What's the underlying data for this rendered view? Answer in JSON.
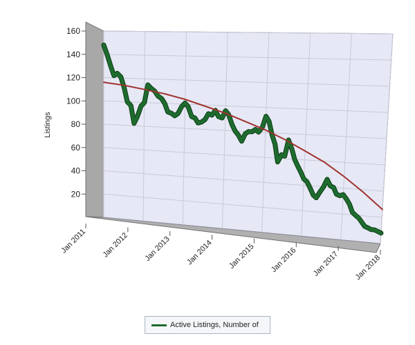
{
  "chart_data": {
    "type": "line",
    "title": "",
    "xlabel": "",
    "ylabel": "Listings",
    "ylim": [
      0,
      160
    ],
    "yticks": [
      20,
      40,
      60,
      80,
      100,
      120,
      140,
      160
    ],
    "xlim": [
      2011,
      2018
    ],
    "xticks": [
      "Jan 2011",
      "Jan 2012",
      "Jan 2013",
      "Jan 2014",
      "Jan 2015",
      "Jan 2016",
      "Jan 2017",
      "Jan 2018"
    ],
    "grid": true,
    "legend_position": "bottom",
    "series": [
      {
        "name": "Active Listings, Number of",
        "color": "#1e6b2e",
        "x": [
          2011.0,
          2011.08,
          2011.17,
          2011.25,
          2011.33,
          2011.42,
          2011.5,
          2011.58,
          2011.67,
          2011.75,
          2011.83,
          2011.92,
          2012.0,
          2012.08,
          2012.17,
          2012.25,
          2012.33,
          2012.42,
          2012.5,
          2012.58,
          2012.67,
          2012.75,
          2012.83,
          2012.92,
          2013.0,
          2013.08,
          2013.17,
          2013.25,
          2013.33,
          2013.42,
          2013.5,
          2013.58,
          2013.67,
          2013.75,
          2013.83,
          2013.92,
          2014.0,
          2014.08,
          2014.17,
          2014.25,
          2014.33,
          2014.42,
          2014.5,
          2014.58,
          2014.67,
          2014.75,
          2014.83,
          2014.92,
          2015.0,
          2015.08,
          2015.17,
          2015.25,
          2015.33,
          2015.42,
          2015.5,
          2015.58,
          2015.67,
          2015.75,
          2015.83,
          2015.92,
          2016.0,
          2016.08,
          2016.17,
          2016.25,
          2016.33,
          2016.42,
          2016.5,
          2016.58,
          2016.67,
          2016.75,
          2016.83,
          2016.92,
          2017.0,
          2017.08,
          2017.17,
          2017.25,
          2017.33,
          2017.42,
          2017.5,
          2017.58,
          2017.67,
          2017.75,
          2017.83,
          2017.92,
          2018.0
        ],
        "values": [
          148,
          140,
          130,
          122,
          124,
          121,
          112,
          100,
          97,
          82,
          88,
          97,
          100,
          115,
          112,
          110,
          106,
          104,
          100,
          93,
          92,
          90,
          92,
          98,
          101,
          98,
          90,
          89,
          85,
          86,
          88,
          93,
          92,
          96,
          91,
          90,
          96,
          93,
          85,
          80,
          77,
          72,
          78,
          80,
          80,
          82,
          80,
          84,
          93,
          89,
          78,
          71,
          57,
          63,
          62,
          75,
          68,
          60,
          55,
          50,
          45,
          43,
          38,
          33,
          31,
          36,
          40,
          46,
          41,
          40,
          35,
          34,
          35,
          32,
          28,
          22,
          20,
          18,
          15,
          12,
          11,
          10,
          10,
          9,
          8
        ],
        "line_width": 5
      },
      {
        "name": "",
        "color": "#a0322d",
        "x": [
          2011.0,
          2011.5,
          2012.0,
          2012.5,
          2013.0,
          2013.5,
          2014.0,
          2014.5,
          2015.0,
          2015.5,
          2016.0,
          2016.5,
          2017.0,
          2017.5,
          2018.0
        ],
        "values": [
          116,
          114,
          111,
          108,
          104,
          99,
          94,
          88,
          82,
          75,
          67,
          59,
          49,
          38,
          26
        ],
        "line_width": 2
      }
    ]
  }
}
